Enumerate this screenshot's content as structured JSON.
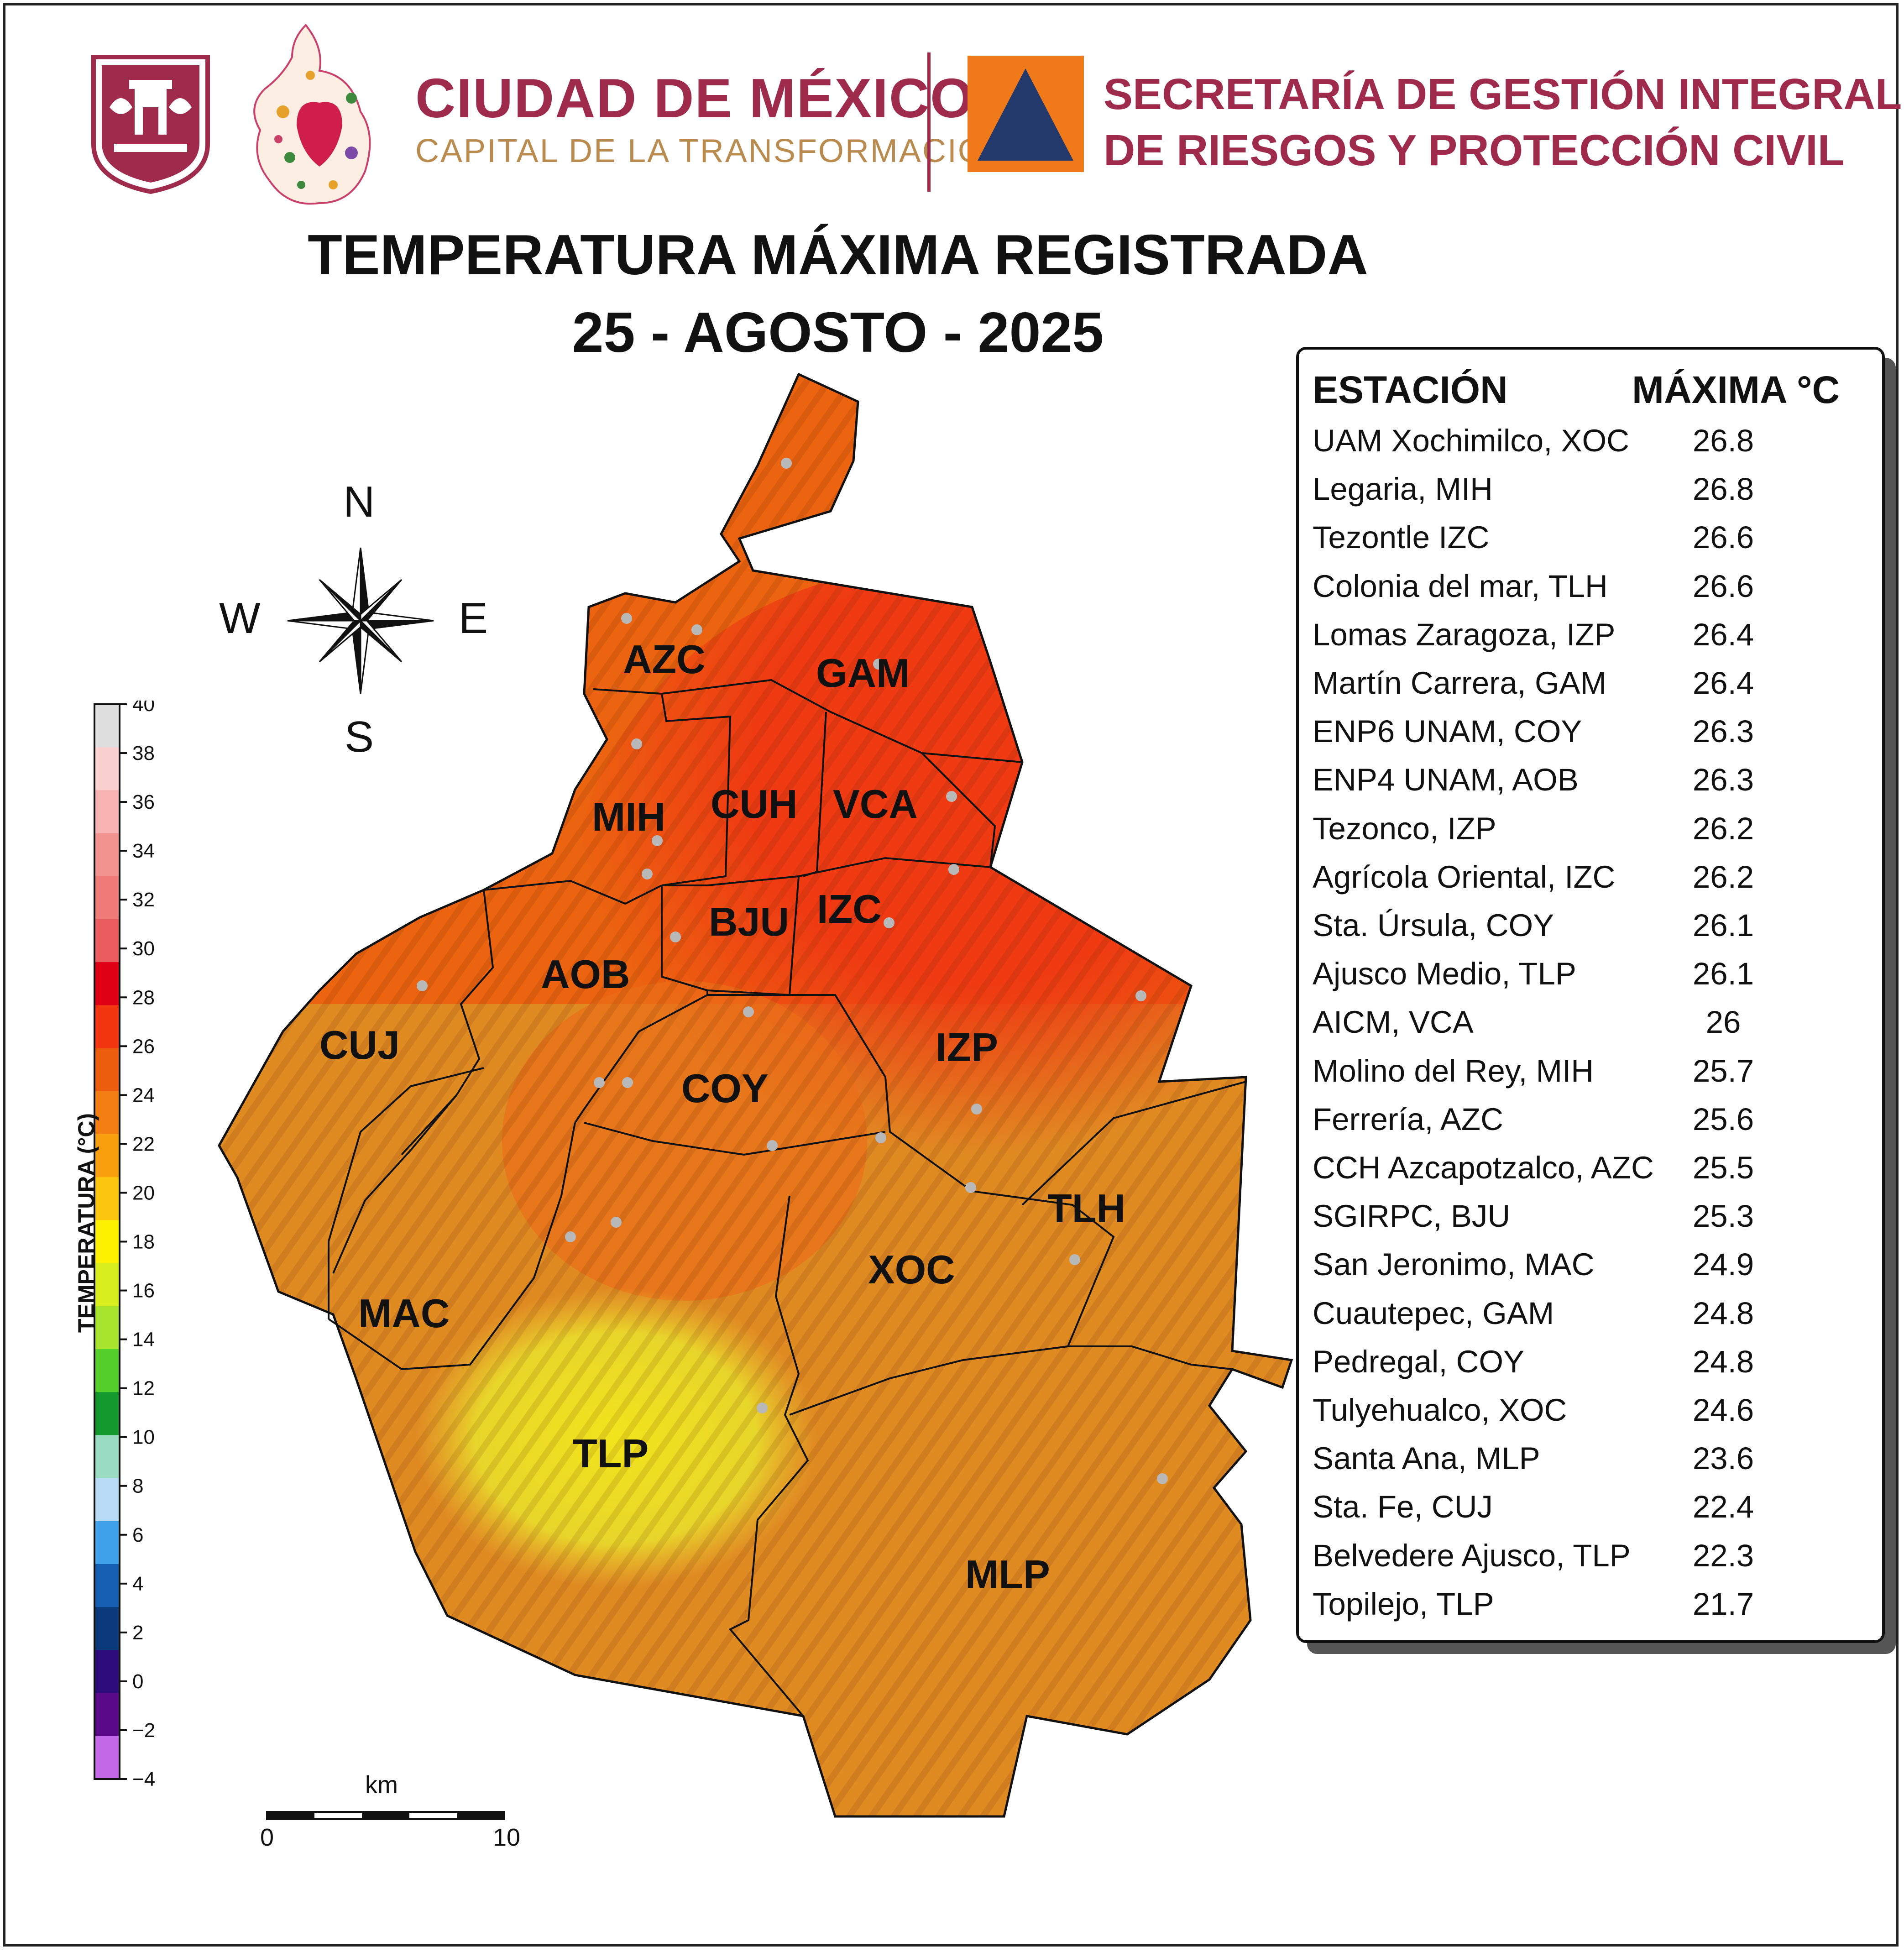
{
  "header": {
    "org_name": "CIUDAD DE MÉXICO",
    "org_slogan": "CAPITAL DE LA TRANSFORMACIÓN",
    "agency_line1": "SECRETARÍA DE GESTIÓN INTEGRAL",
    "agency_line2": "DE RIESGOS Y PROTECCIÓN CIVIL"
  },
  "title": "TEMPERATURA MÁXIMA REGISTRADA",
  "date": "25 - AGOSTO - 2025",
  "compass": {
    "n": "N",
    "s": "S",
    "e": "E",
    "w": "W"
  },
  "colorbar": {
    "title": "TEMPERATURA (°C)",
    "ticks": [
      "40",
      "38",
      "36",
      "34",
      "32",
      "30",
      "28",
      "26",
      "24",
      "22",
      "20",
      "18",
      "16",
      "14",
      "12",
      "10",
      "8",
      "6",
      "4",
      "2",
      "0",
      "−2",
      "−4"
    ],
    "colors": [
      "#dedede",
      "#f9d0cf",
      "#f7b3b2",
      "#f29390",
      "#ef7b78",
      "#ea5d5e",
      "#e00016",
      "#f0350f",
      "#ec5e0e",
      "#f27e12",
      "#f99e0d",
      "#fbc60d",
      "#fff200",
      "#d9ee1f",
      "#a7e22c",
      "#55cf2c",
      "#139a2f",
      "#9adcc1",
      "#b9dcf6",
      "#3fa3eb",
      "#1560b3",
      "#0b3a7b",
      "#2d0b7a",
      "#5a0a86",
      "#c369e8"
    ]
  },
  "scale": {
    "unit": "km",
    "min": "0",
    "max": "10"
  },
  "legend": {
    "col_station": "ESTACIÓN",
    "col_max": "MÁXIMA °C",
    "rows": [
      {
        "station": "UAM Xochimilco, XOC",
        "value": "26.8"
      },
      {
        "station": "Legaria, MIH",
        "value": "26.8"
      },
      {
        "station": "Tezontle IZC",
        "value": "26.6"
      },
      {
        "station": "Colonia del mar, TLH",
        "value": "26.6"
      },
      {
        "station": "Lomas Zaragoza, IZP",
        "value": "26.4"
      },
      {
        "station": "Martín Carrera, GAM",
        "value": "26.4"
      },
      {
        "station": "ENP6 UNAM,  COY",
        "value": "26.3"
      },
      {
        "station": "ENP4 UNAM,  AOB",
        "value": "26.3"
      },
      {
        "station": "Tezonco, IZP",
        "value": "26.2"
      },
      {
        "station": "Agrícola Oriental, IZC",
        "value": "26.2"
      },
      {
        "station": "Sta. Úrsula, COY",
        "value": "26.1"
      },
      {
        "station": "Ajusco Medio, TLP",
        "value": "26.1"
      },
      {
        "station": "AICM, VCA",
        "value": "26"
      },
      {
        "station": "Molino del Rey, MIH",
        "value": "25.7"
      },
      {
        "station": "Ferrería, AZC",
        "value": "25.6"
      },
      {
        "station": "CCH Azcapotzalco, AZC",
        "value": "25.5"
      },
      {
        "station": "SGIRPC, BJU",
        "value": "25.3"
      },
      {
        "station": "San Jeronimo, MAC",
        "value": "24.9"
      },
      {
        "station": "Cuautepec, GAM",
        "value": "24.8"
      },
      {
        "station": "Pedregal, COY",
        "value": "24.8"
      },
      {
        "station": "Tulyehualco, XOC",
        "value": "24.6"
      },
      {
        "station": "Santa Ana, MLP",
        "value": "23.6"
      },
      {
        "station": "Sta. Fe, CUJ",
        "value": "22.4"
      },
      {
        "station": "Belvedere Ajusco, TLP",
        "value": "22.3"
      },
      {
        "station": "Topilejo, TLP",
        "value": "21.7"
      }
    ]
  },
  "municipalities": [
    "AZC",
    "GAM",
    "MIH",
    "CUH",
    "VCA",
    "BJU",
    "IZC",
    "AOB",
    "CUJ",
    "COY",
    "IZP",
    "TLH",
    "XOC",
    "MAC",
    "TLP",
    "MLP"
  ],
  "colors": {
    "brand": "#9e2a4c",
    "gold": "#b98b4f",
    "civil_orange": "#f07a1a",
    "civil_navy": "#24396b"
  }
}
